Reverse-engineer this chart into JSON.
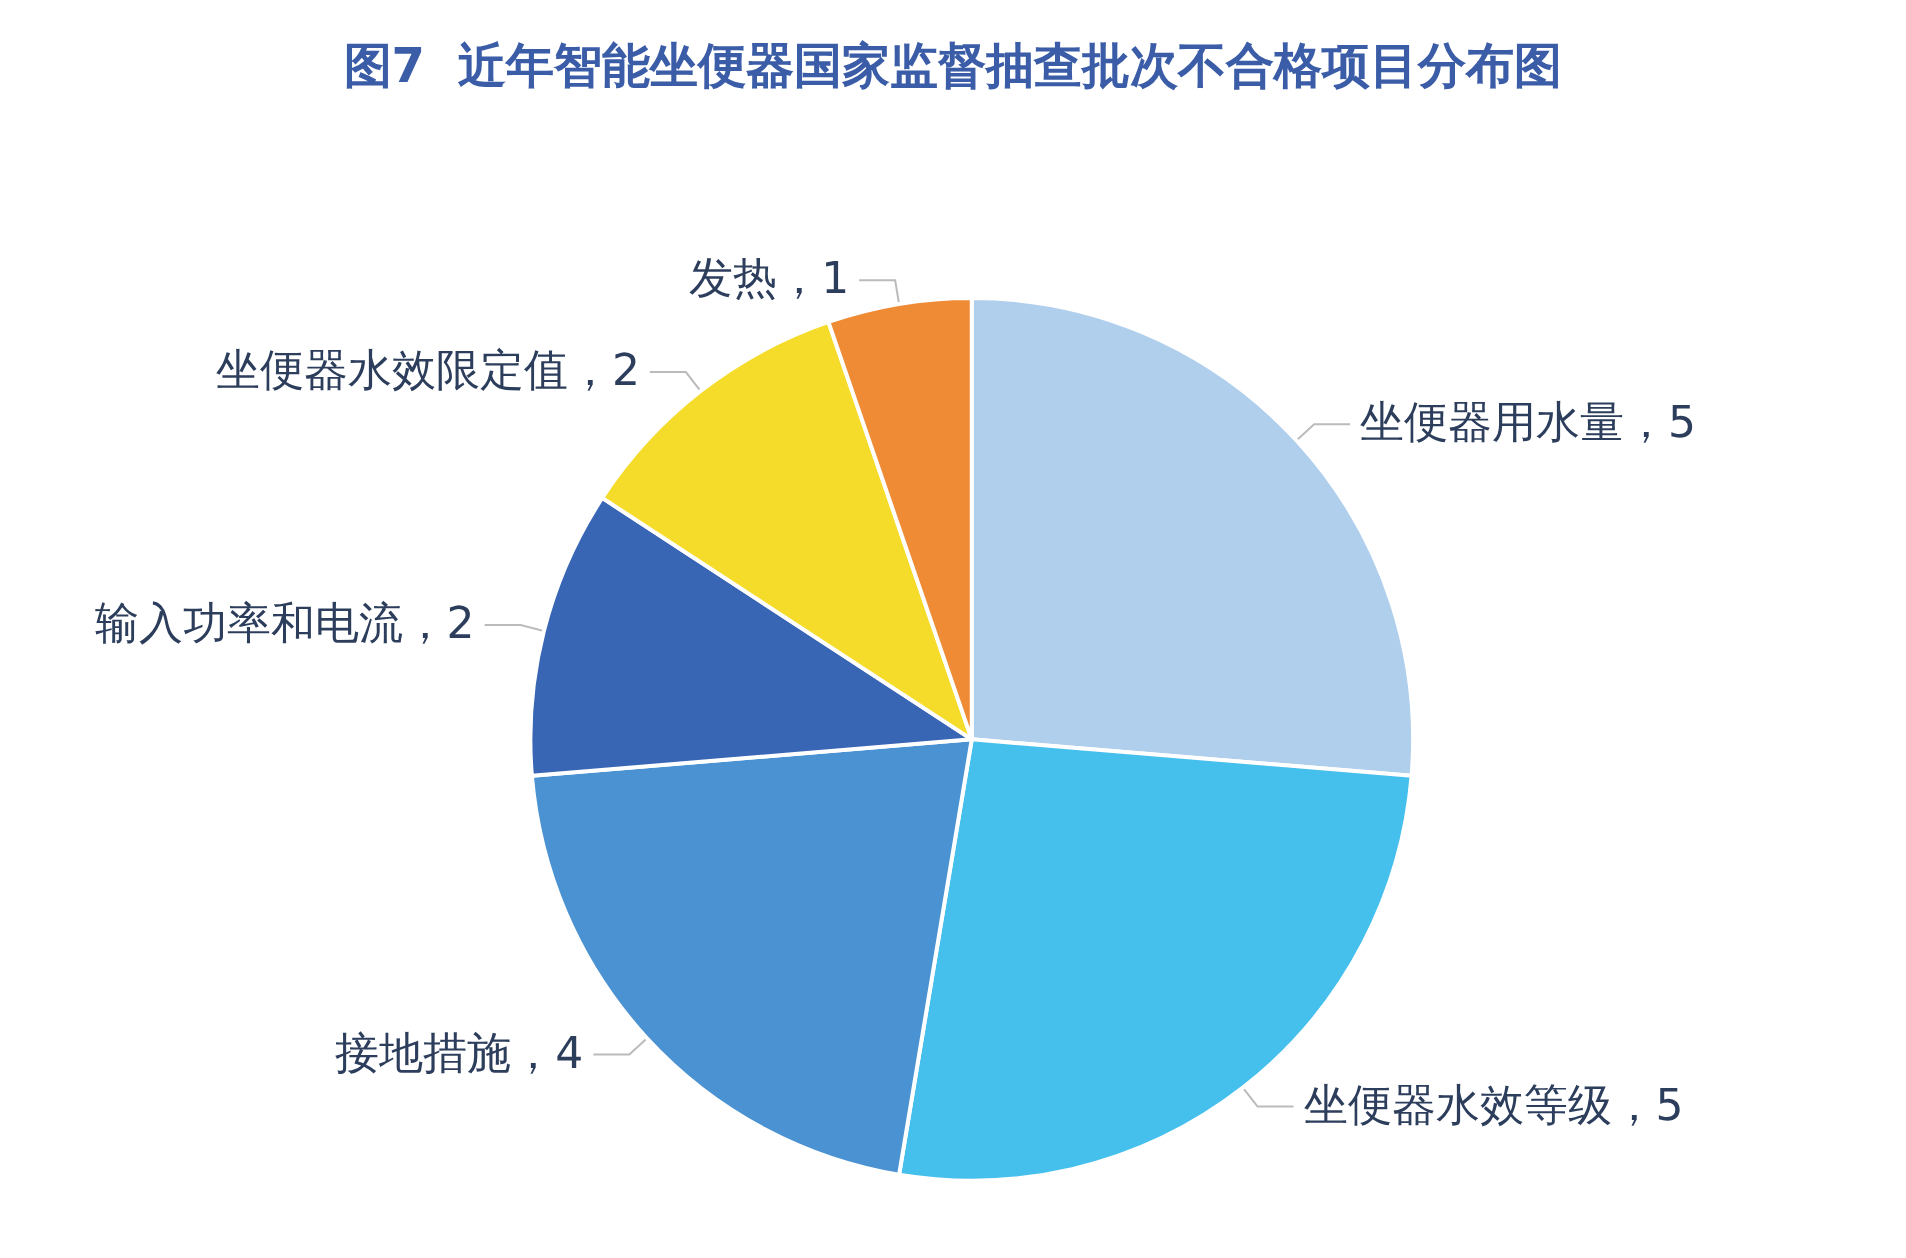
{
  "chart_data": {
    "type": "pie",
    "title": "图7  近年智能坐便器国家监督抽查批次不合格项目分布图",
    "categories": [
      "坐便器用水量",
      "坐便器水效等级",
      "接地措施",
      "输入功率和电流",
      "坐便器水效限定值",
      "发热"
    ],
    "values": [
      5,
      5,
      4,
      2,
      2,
      1
    ],
    "colors": [
      "#b0cfed",
      "#45bfec",
      "#4a92d2",
      "#3966b4",
      "#f5dc2a",
      "#ef8a35"
    ],
    "value_labels": [
      "，5",
      "，5",
      "，4",
      "，2",
      "，2",
      "，1"
    ],
    "legend": false
  }
}
